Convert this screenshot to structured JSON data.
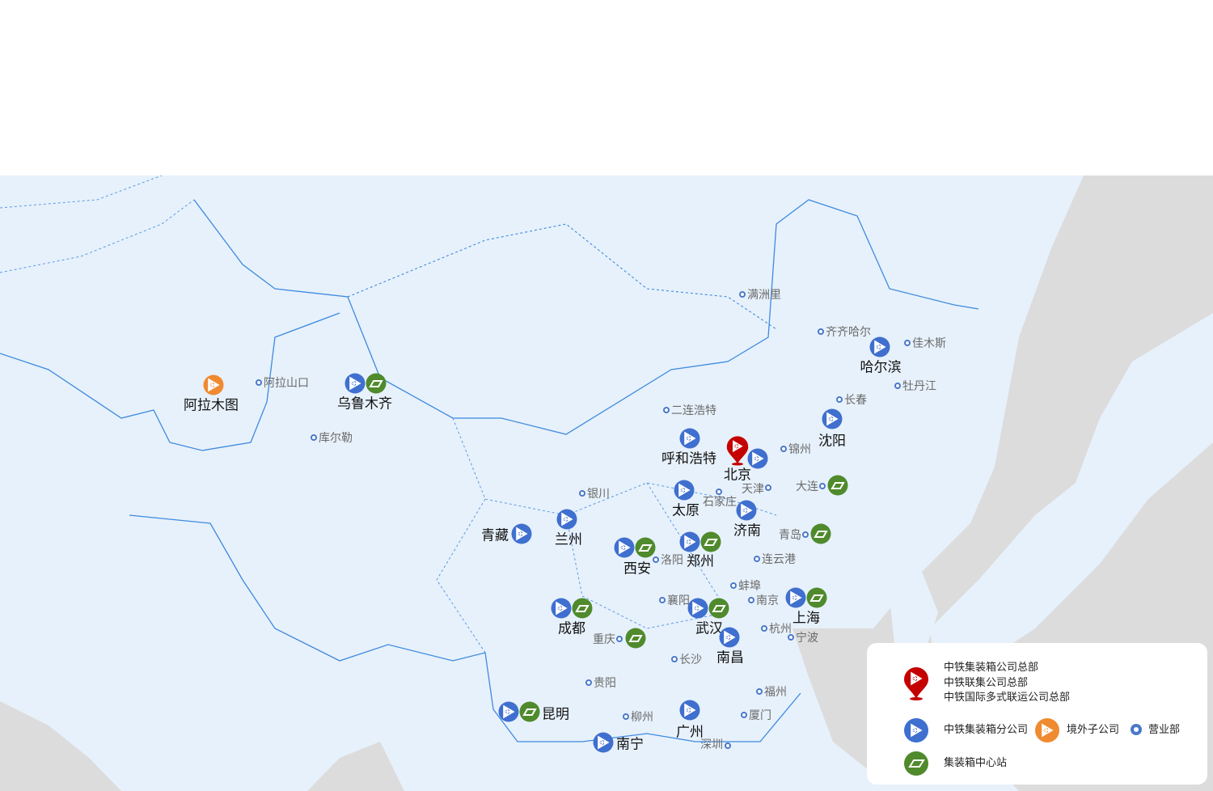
{
  "colors": {
    "land": "#e7f1fb",
    "sea": "#dcdcdc",
    "border": "#3d8ae0",
    "branch": "#3f6fcf",
    "overseas": "#f08a30",
    "center": "#4f8a2c",
    "hq": "#c40000"
  },
  "cities": [
    {
      "name": "北京",
      "kind": "hq"
    },
    {
      "name": "阿拉木图",
      "kind": "overseas"
    },
    {
      "name": "乌鲁木齐",
      "kind": "branch+center"
    },
    {
      "name": "呼和浩特",
      "kind": "branch"
    },
    {
      "name": "沈阳",
      "kind": "branch"
    },
    {
      "name": "哈尔滨",
      "kind": "branch"
    },
    {
      "name": "太原",
      "kind": "branch"
    },
    {
      "name": "济南",
      "kind": "branch"
    },
    {
      "name": "青藏",
      "kind": "branch"
    },
    {
      "name": "兰州",
      "kind": "branch"
    },
    {
      "name": "西安",
      "kind": "branch+center"
    },
    {
      "name": "郑州",
      "kind": "branch+center"
    },
    {
      "name": "成都",
      "kind": "branch+center"
    },
    {
      "name": "武汉",
      "kind": "branch+center"
    },
    {
      "name": "上海",
      "kind": "branch+center"
    },
    {
      "name": "南昌",
      "kind": "branch"
    },
    {
      "name": "昆明",
      "kind": "branch+center"
    },
    {
      "name": "南宁",
      "kind": "branch"
    },
    {
      "name": "广州",
      "kind": "branch"
    },
    {
      "name": "阿拉山口",
      "kind": "office"
    },
    {
      "name": "库尔勒",
      "kind": "office"
    },
    {
      "name": "满洲里",
      "kind": "office"
    },
    {
      "name": "齐齐哈尔",
      "kind": "office"
    },
    {
      "name": "佳木斯",
      "kind": "office"
    },
    {
      "name": "牡丹江",
      "kind": "office"
    },
    {
      "name": "长春",
      "kind": "office"
    },
    {
      "name": "二连浩特",
      "kind": "office"
    },
    {
      "name": "锦州",
      "kind": "office"
    },
    {
      "name": "天津",
      "kind": "office"
    },
    {
      "name": "大连",
      "kind": "office+center"
    },
    {
      "name": "银川",
      "kind": "office"
    },
    {
      "name": "石家庄",
      "kind": "office"
    },
    {
      "name": "青岛",
      "kind": "office+center"
    },
    {
      "name": "洛阳",
      "kind": "office"
    },
    {
      "name": "连云港",
      "kind": "office"
    },
    {
      "name": "蚌埠",
      "kind": "office"
    },
    {
      "name": "襄阳",
      "kind": "office"
    },
    {
      "name": "南京",
      "kind": "office"
    },
    {
      "name": "杭州",
      "kind": "office"
    },
    {
      "name": "宁波",
      "kind": "office"
    },
    {
      "name": "重庆",
      "kind": "office+center"
    },
    {
      "name": "长沙",
      "kind": "office"
    },
    {
      "name": "贵阳",
      "kind": "office"
    },
    {
      "name": "福州",
      "kind": "office"
    },
    {
      "name": "厦门",
      "kind": "office"
    },
    {
      "name": "柳州",
      "kind": "office"
    },
    {
      "name": "深圳",
      "kind": "office"
    }
  ],
  "legend": {
    "hq_lines": [
      "中铁集装箱公司总部",
      "中铁联集公司总部",
      "中铁国际多式联运公司总部"
    ],
    "branch": "中铁集装箱分公司",
    "overseas": "境外子公司",
    "office": "营业部",
    "center": "集装箱中心站"
  }
}
